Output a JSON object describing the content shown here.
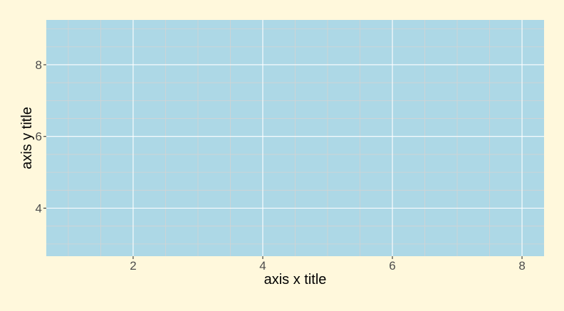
{
  "colors": {
    "page_background": "#fff8dc",
    "panel_background": "#add8e6",
    "major_grid": "#ffffff",
    "minor_grid": "#d3d3d3",
    "tick_label": "#4d4d4d",
    "axis_title": "#000000"
  },
  "chart_data": {
    "type": "scatter",
    "title": "",
    "xlabel": "axis x title",
    "ylabel": "axis y title",
    "xlim": [
      0.66,
      8.34
    ],
    "ylim": [
      2.66,
      9.25
    ],
    "x_ticks": [
      2,
      4,
      6,
      8
    ],
    "y_ticks": [
      4,
      6,
      8
    ],
    "x_minor_ticks": [
      1,
      3,
      5,
      7
    ],
    "y_minor_ticks": [
      3,
      5,
      7,
      9
    ],
    "x_minor_grid_step": 0.5,
    "y_minor_grid_step": 0.5,
    "grid": true,
    "legend": "none",
    "series": []
  }
}
